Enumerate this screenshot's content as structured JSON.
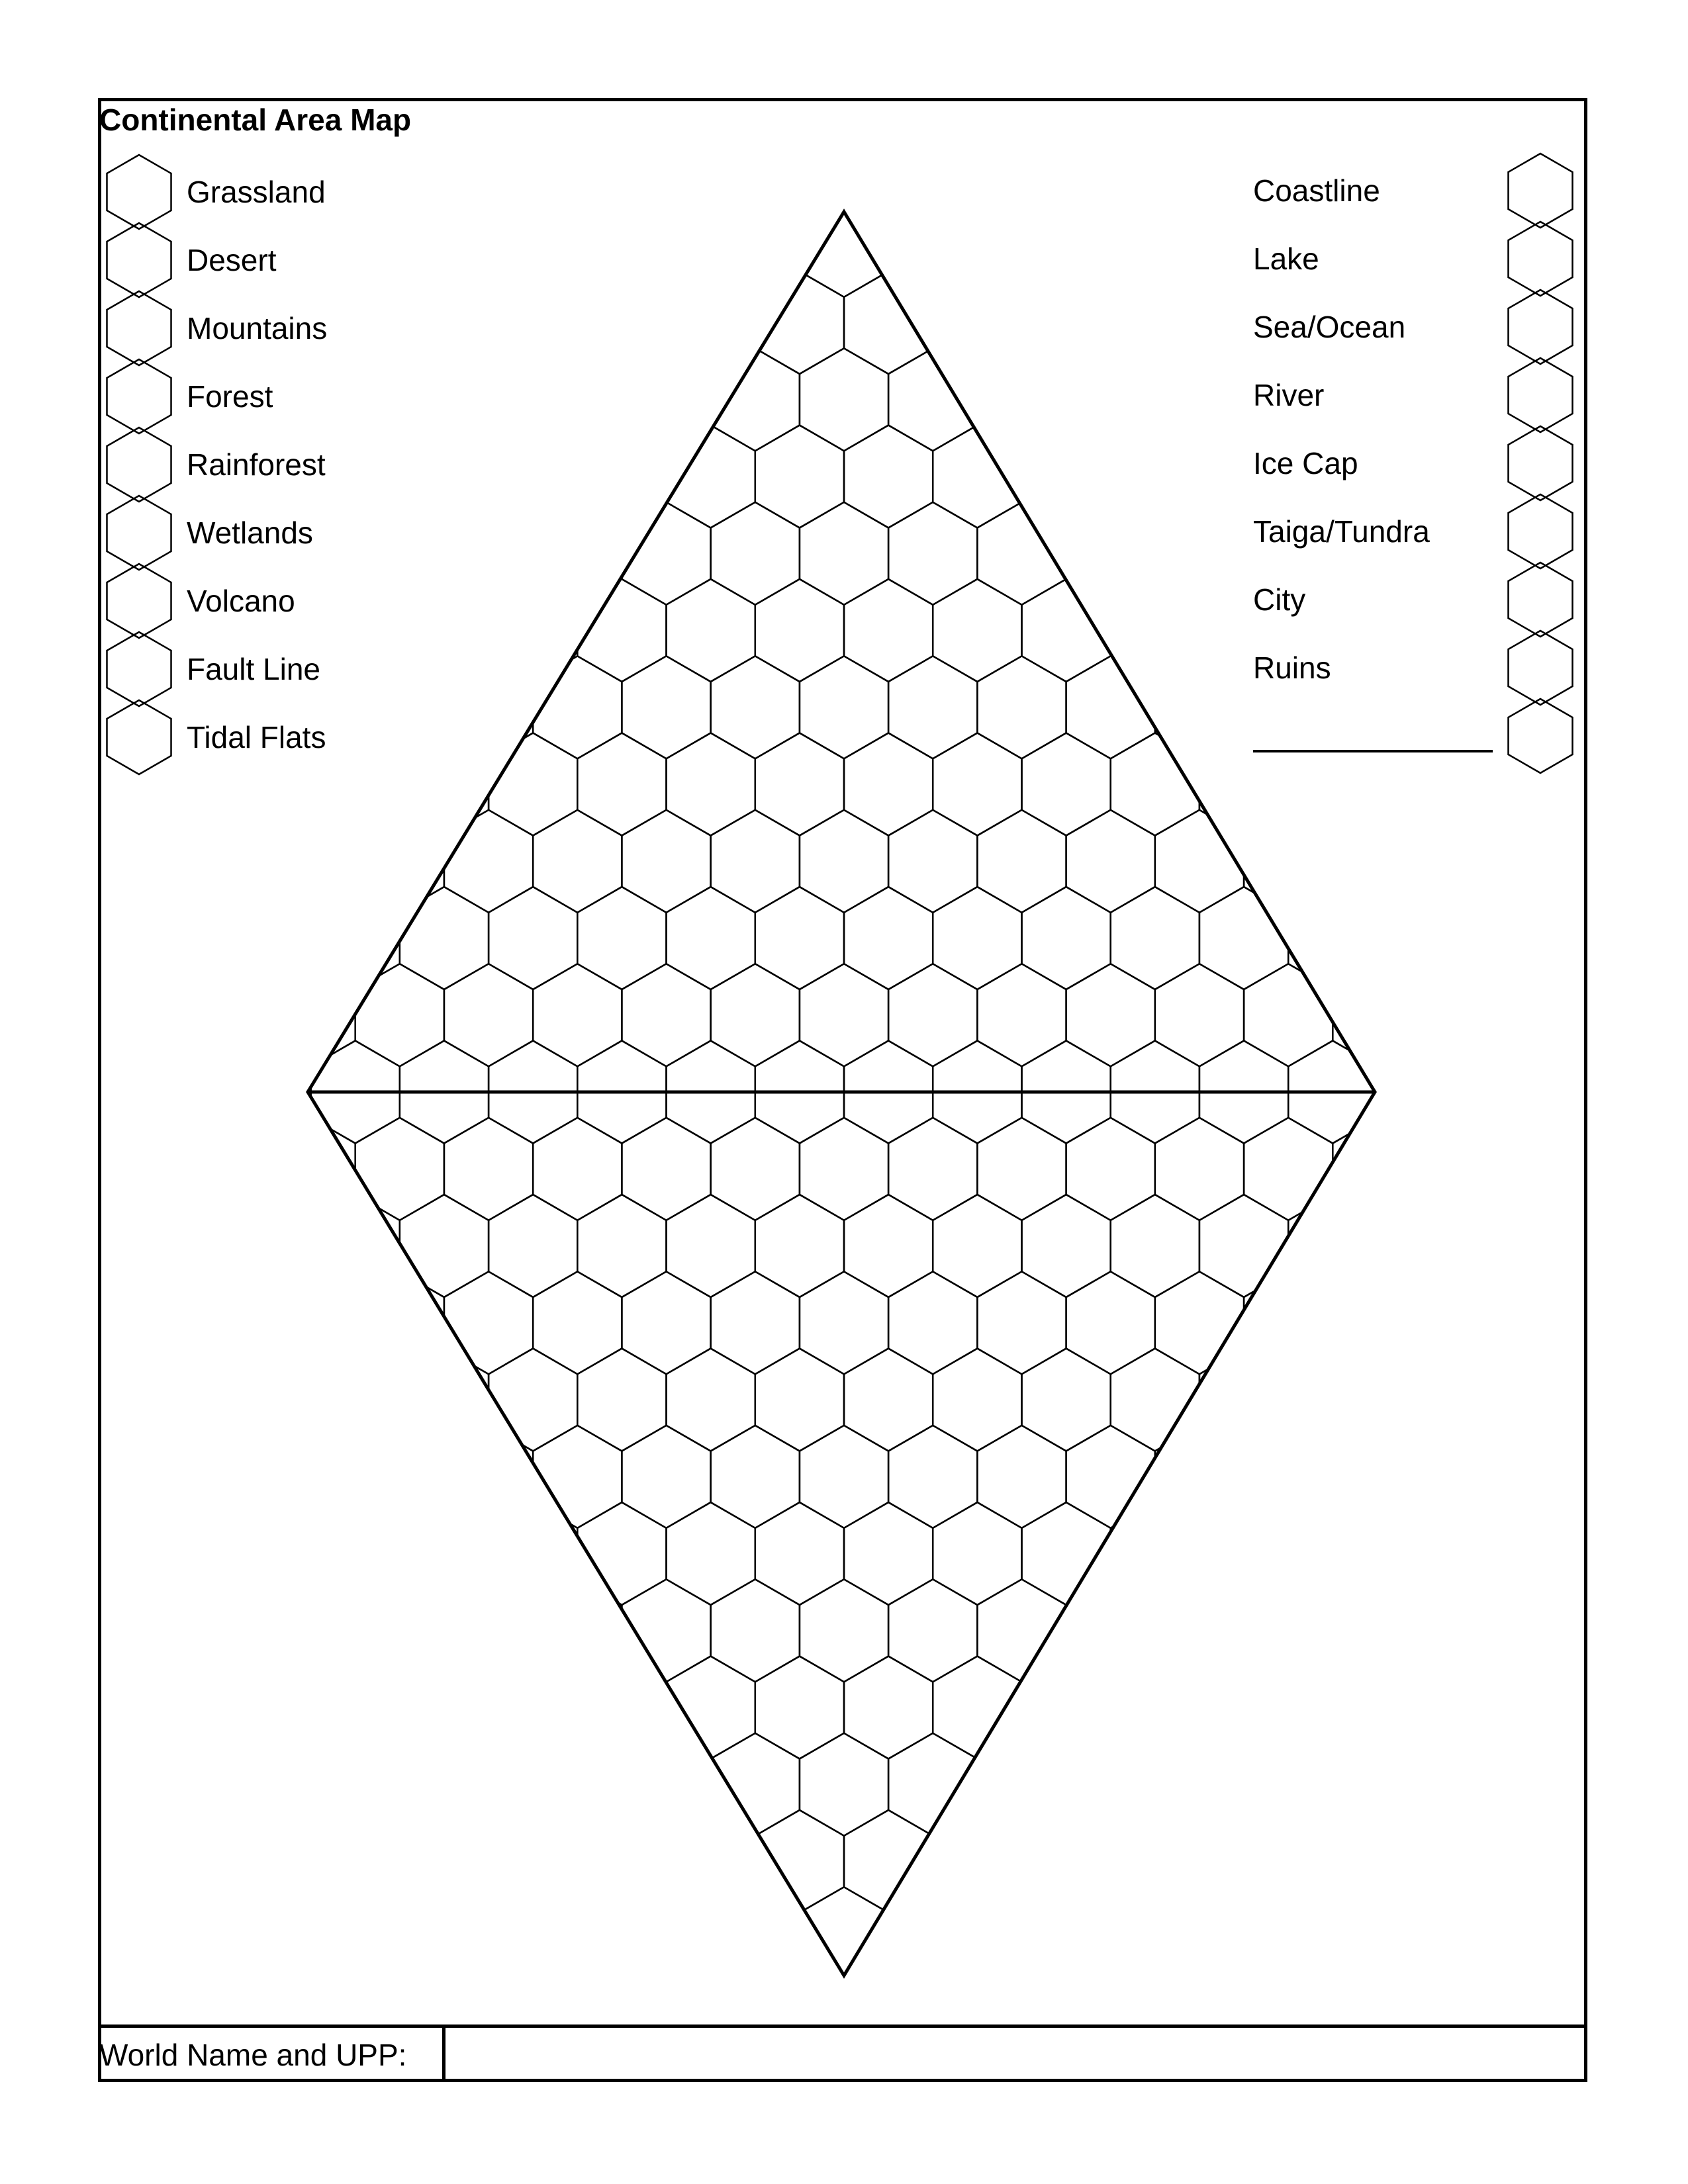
{
  "title": "Continental Area Map",
  "legend_left": [
    "Grassland",
    "Desert",
    "Mountains",
    "Forest",
    "Rainforest",
    "Wetlands",
    "Volcano",
    "Fault Line",
    "Tidal Flats"
  ],
  "legend_right": [
    "Coastline",
    "Lake",
    "Sea/Ocean",
    "River",
    "Ice Cap",
    "Taiga/Tundra",
    "City",
    "Ruins",
    ""
  ],
  "footer": {
    "label": "World Name and UPP:",
    "value": ""
  }
}
